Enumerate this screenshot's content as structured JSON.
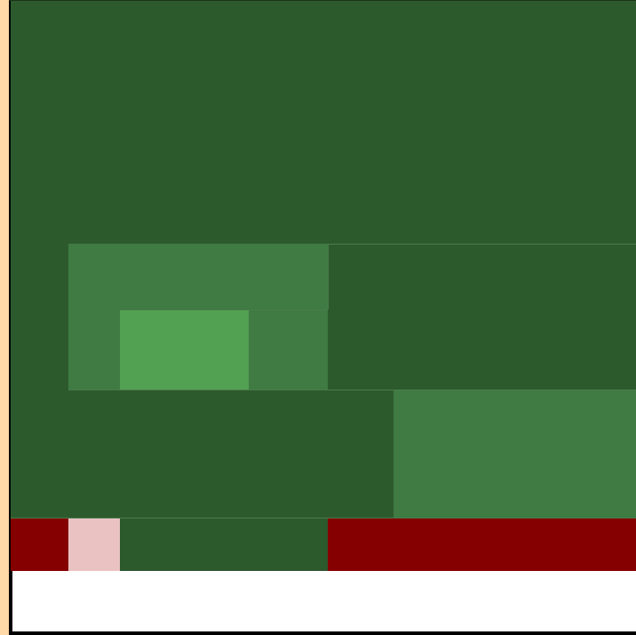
{
  "scene": {
    "type": "grid-map",
    "palette": {
      "left_edge": "#ffd9a8",
      "dark_grass": "#2d5a2d",
      "mid_grass": "#3f7b43",
      "light_grass": "#52a152",
      "lava": "#850000",
      "pink": "#eac2c2",
      "blank": "#ffffff",
      "border": "#000000"
    },
    "regions": [
      {
        "name": "top-grass-field",
        "kind": "dark-grass"
      },
      {
        "name": "mid-left-grass-block",
        "kind": "mid-grass"
      },
      {
        "name": "highlight-grass-tile",
        "kind": "light-grass"
      },
      {
        "name": "right-grass-block",
        "kind": "mid-grass"
      },
      {
        "name": "lava-strip-left",
        "kind": "lava"
      },
      {
        "name": "pink-tile",
        "kind": "pink"
      },
      {
        "name": "lava-strip-right",
        "kind": "lava"
      },
      {
        "name": "empty-bottom-panel",
        "kind": "blank"
      }
    ]
  }
}
